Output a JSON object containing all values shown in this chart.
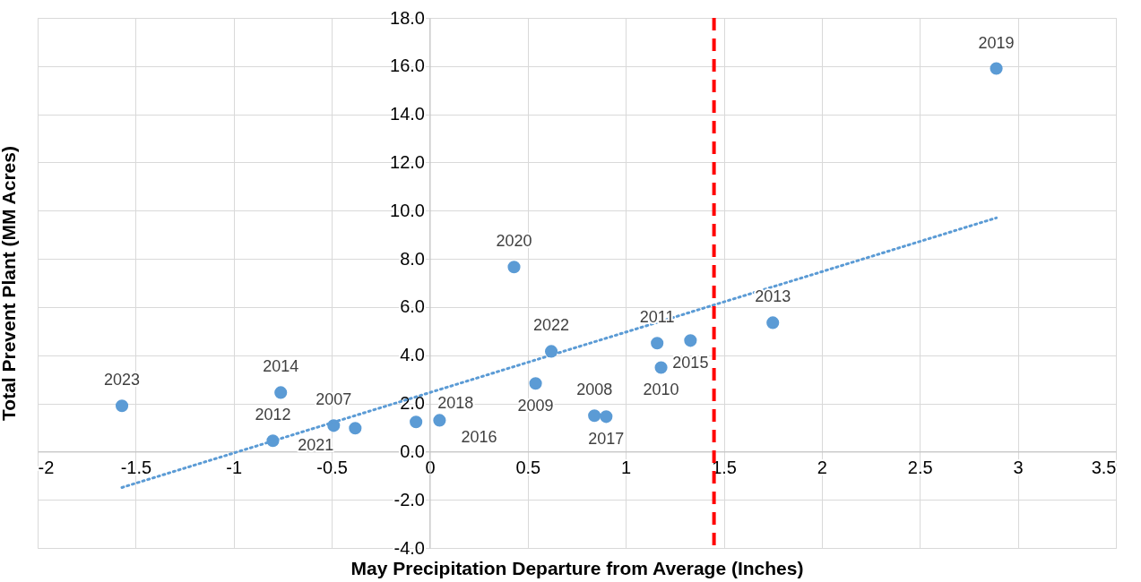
{
  "chart_data": {
    "type": "scatter",
    "xlabel": "May Precipitation Departure from Average (Inches)",
    "ylabel": "Total Prevent Plant (MM Acres)",
    "xlim": [
      -2,
      3.5
    ],
    "xticks": [
      -2,
      -1.5,
      -1,
      -0.5,
      0,
      0.5,
      1,
      1.5,
      2,
      2.5,
      3,
      3.5
    ],
    "ylim": [
      -4,
      18
    ],
    "yticks": [
      {
        "value": -4,
        "label": "-4.0"
      },
      {
        "value": -2,
        "label": "-2.0"
      },
      {
        "value": 0,
        "label": "0.0"
      },
      {
        "value": 2,
        "label": "2.0"
      },
      {
        "value": 4,
        "label": "4.0"
      },
      {
        "value": 6,
        "label": "6.0"
      },
      {
        "value": 8,
        "label": "8.0"
      },
      {
        "value": 10,
        "label": "10.0"
      },
      {
        "value": 12,
        "label": "12.0"
      },
      {
        "value": 14,
        "label": "14.0"
      },
      {
        "value": 16,
        "label": "16.0"
      },
      {
        "value": 18,
        "label": "18.0"
      }
    ],
    "grid": true,
    "marker": "circle",
    "series": [
      {
        "color": "#5b9bd5",
        "x": [
          -1.57,
          -0.76,
          -0.8,
          -0.49,
          -0.38,
          -0.07,
          0.05,
          0.43,
          0.54,
          0.62,
          0.84,
          0.9,
          1.16,
          1.18,
          1.33,
          1.75,
          2.89
        ],
        "values": [
          1.9,
          2.45,
          0.45,
          1.08,
          0.97,
          1.23,
          1.3,
          7.66,
          2.83,
          4.16,
          1.49,
          1.45,
          4.5,
          3.49,
          4.61,
          5.35,
          15.9
        ]
      },
      {
        "type": "line",
        "color": "#5b9bd5",
        "line_style": "dotted",
        "marker": "none",
        "x": [
          -1.57,
          2.89
        ],
        "values": [
          -1.49,
          9.7
        ]
      }
    ],
    "ref_lines": [
      {
        "axis": "x",
        "value": 1.45,
        "color": "#ff0000",
        "line_style": "dashed"
      }
    ],
    "annotations": [
      {
        "text": "2023",
        "x": -1.57,
        "y": 1.9
      },
      {
        "text": "2014",
        "x": -0.76,
        "y": 2.45
      },
      {
        "text": "2012",
        "x": -0.8,
        "y": 0.45
      },
      {
        "text": "2007",
        "x": -0.49,
        "y": 1.08
      },
      {
        "text": "2021",
        "x": -0.38,
        "y": 0.97
      },
      {
        "text": "2018",
        "x": -0.07,
        "y": 1.23
      },
      {
        "text": "2016",
        "x": 0.05,
        "y": 1.3
      },
      {
        "text": "2020",
        "x": 0.43,
        "y": 7.66
      },
      {
        "text": "2009",
        "x": 0.54,
        "y": 2.83
      },
      {
        "text": "2022",
        "x": 0.62,
        "y": 4.16
      },
      {
        "text": "2008",
        "x": 0.84,
        "y": 1.49
      },
      {
        "text": "2017",
        "x": 0.9,
        "y": 1.45
      },
      {
        "text": "2011",
        "x": 1.16,
        "y": 4.5
      },
      {
        "text": "2010",
        "x": 1.18,
        "y": 3.49
      },
      {
        "text": "2015",
        "x": 1.33,
        "y": 4.61
      },
      {
        "text": "2013",
        "x": 1.75,
        "y": 5.35
      },
      {
        "text": "2019",
        "x": 2.89,
        "y": 15.9
      }
    ]
  }
}
